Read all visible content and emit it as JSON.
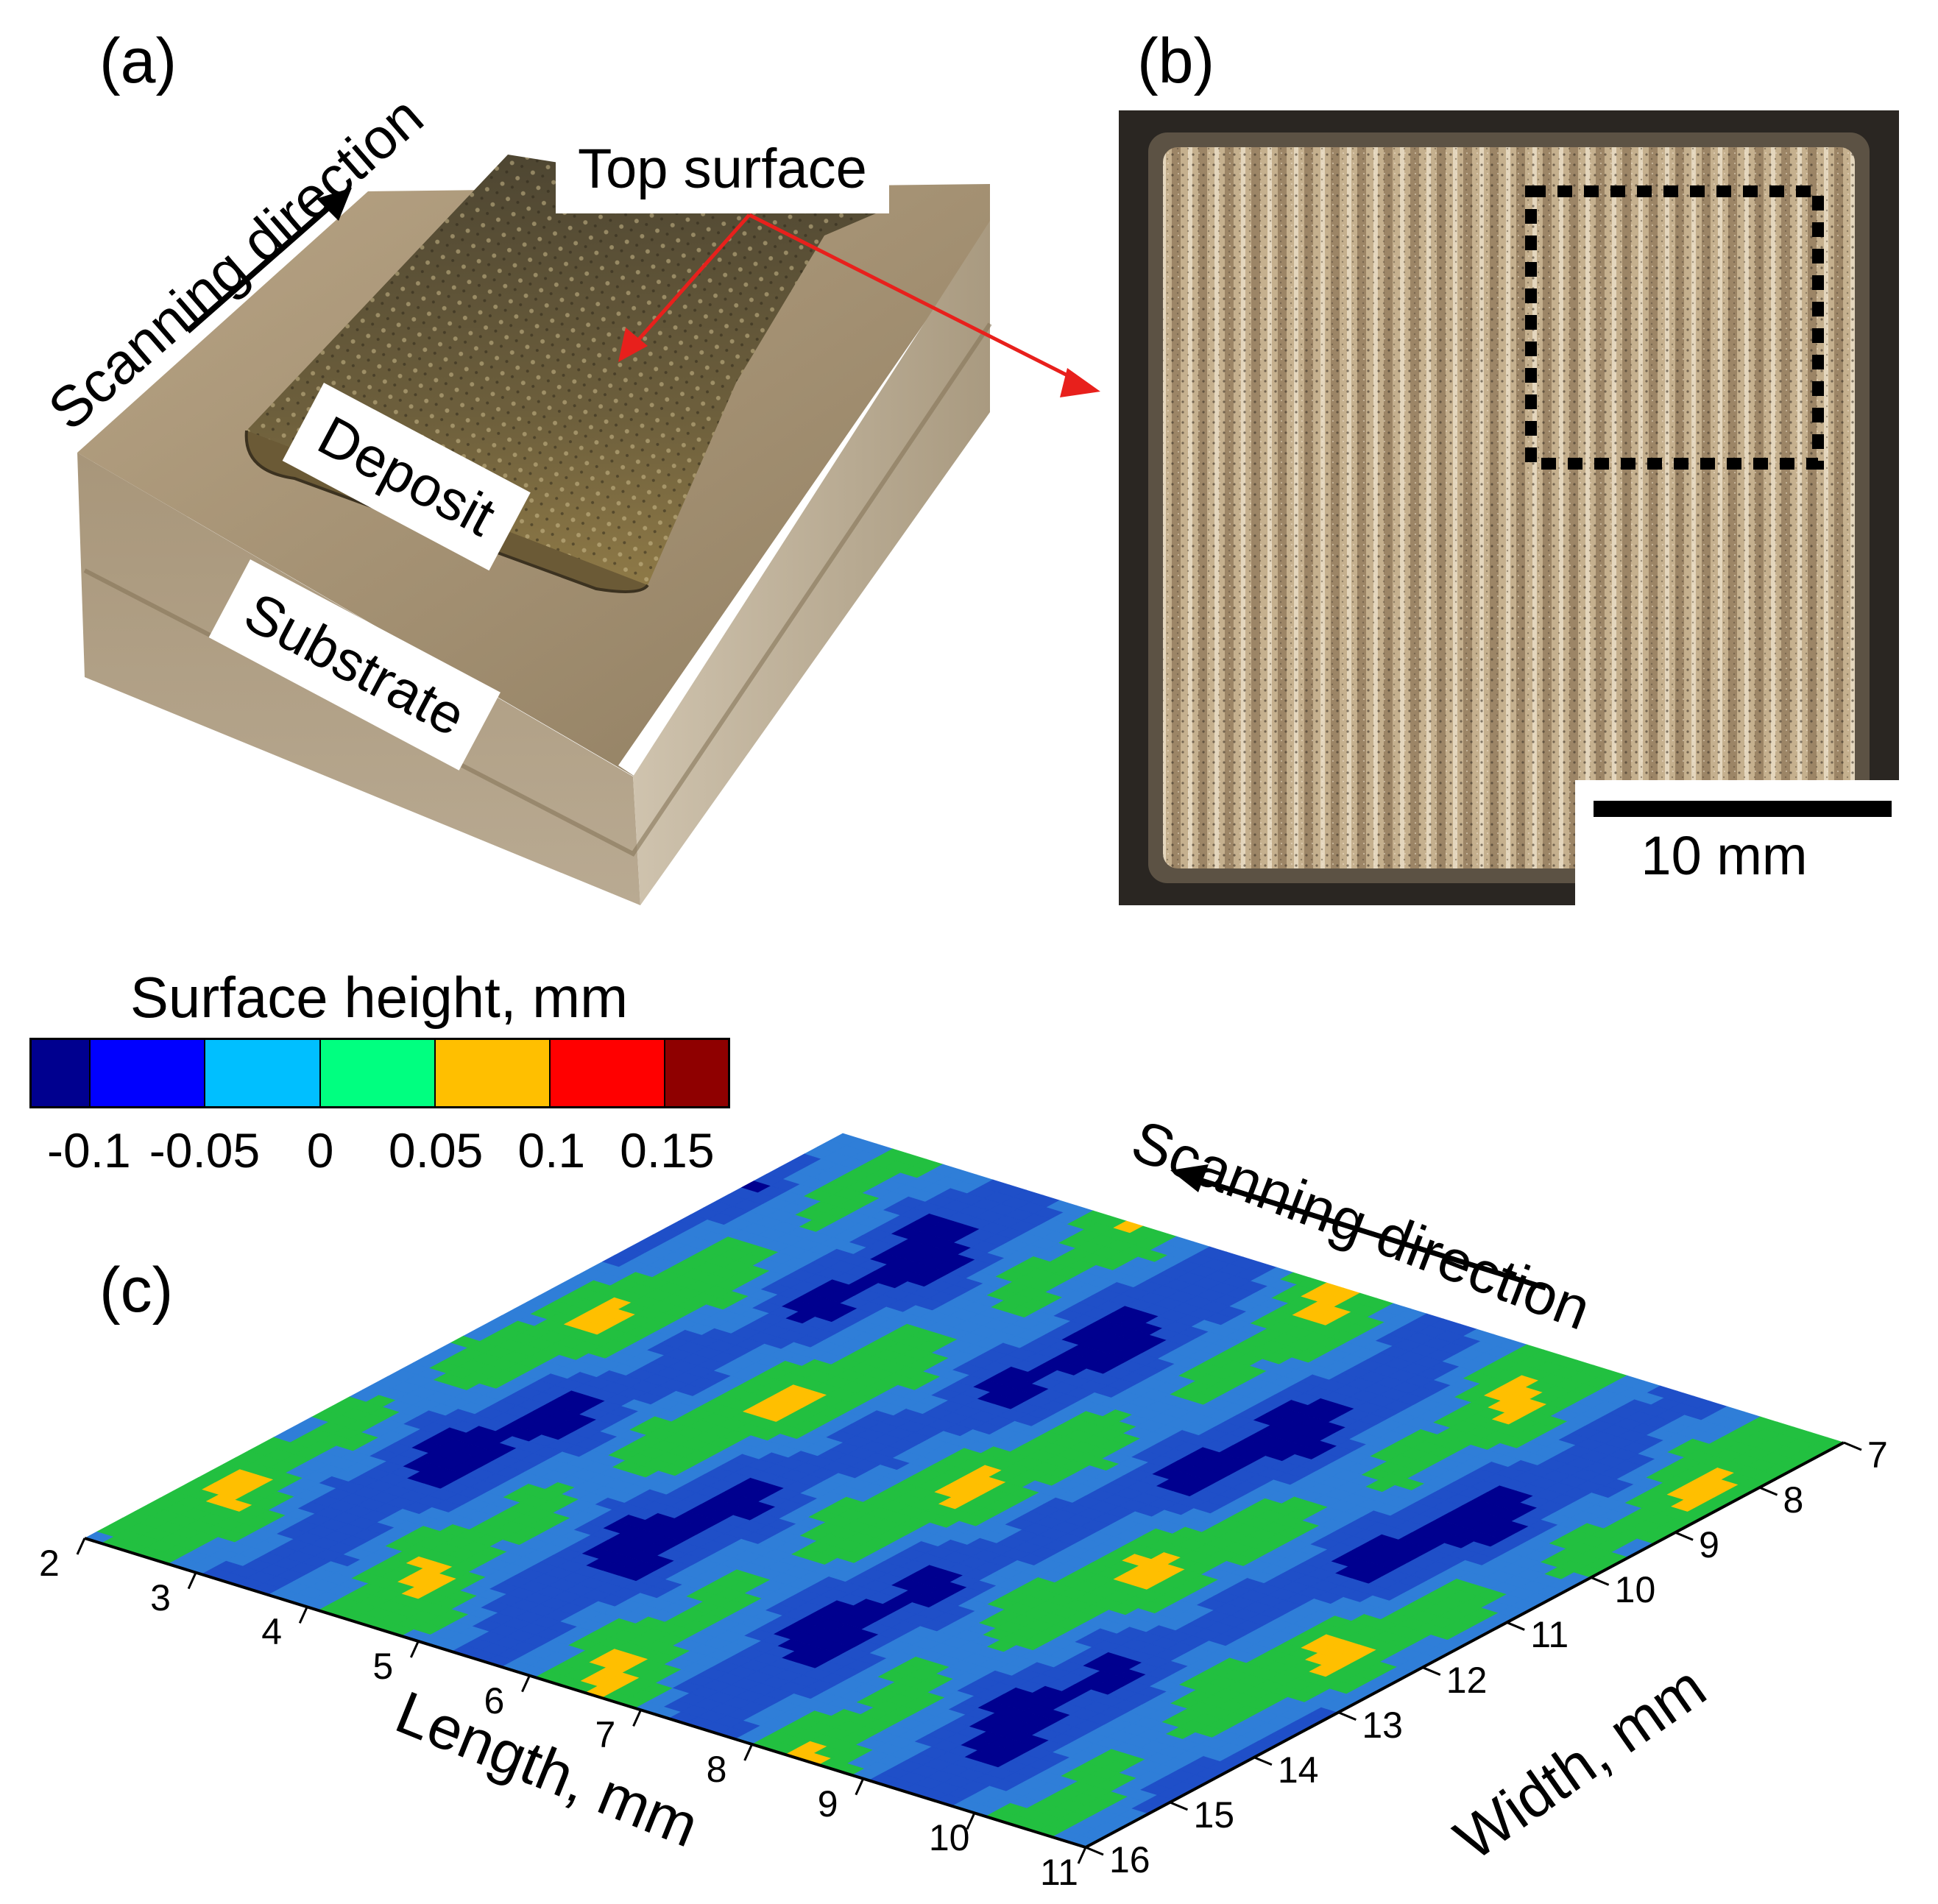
{
  "panels": {
    "a": {
      "label": "(a)",
      "scan_direction": "Scanning direction",
      "top_surface": "Top surface",
      "deposit": "Deposit",
      "substrate": "Substrate"
    },
    "b": {
      "label": "(b)",
      "scale_bar": "10 mm"
    },
    "c": {
      "label": "(c)",
      "scan_direction": "Scanning direction"
    }
  },
  "colors": {
    "arrow_red": "#e8201c",
    "colormap": [
      "#00008f",
      "#0000ff",
      "#00bfff",
      "#00ff80",
      "#ffbf00",
      "#ff0000",
      "#8f0000"
    ],
    "surface_base": "#1f4fc8",
    "surface_high": "#22c040"
  },
  "chart_data": {
    "type": "heatmap",
    "title": "",
    "colorbar": {
      "label": "Surface height, mm",
      "ticks": [
        "-0.1",
        "-0.05",
        "0",
        "0.05",
        "0.1",
        "0.15"
      ],
      "range": [
        -0.125,
        0.175
      ]
    },
    "xlabel": "Length, mm",
    "ylabel": "Width, mm",
    "x_ticks": [
      "2",
      "3",
      "4",
      "5",
      "6",
      "7",
      "8",
      "9",
      "10",
      "11"
    ],
    "y_ticks": [
      "7",
      "8",
      "9",
      "10",
      "11",
      "12",
      "13",
      "14",
      "15",
      "16"
    ],
    "xlim": [
      2,
      11
    ],
    "ylim": [
      7,
      16
    ],
    "z_pattern": "alternating bands of ~0.05 mm (green) ridges and ~-0.05 mm (blue) valleys along the scanning direction, with sparse peaks near 0.1–0.15 mm"
  }
}
